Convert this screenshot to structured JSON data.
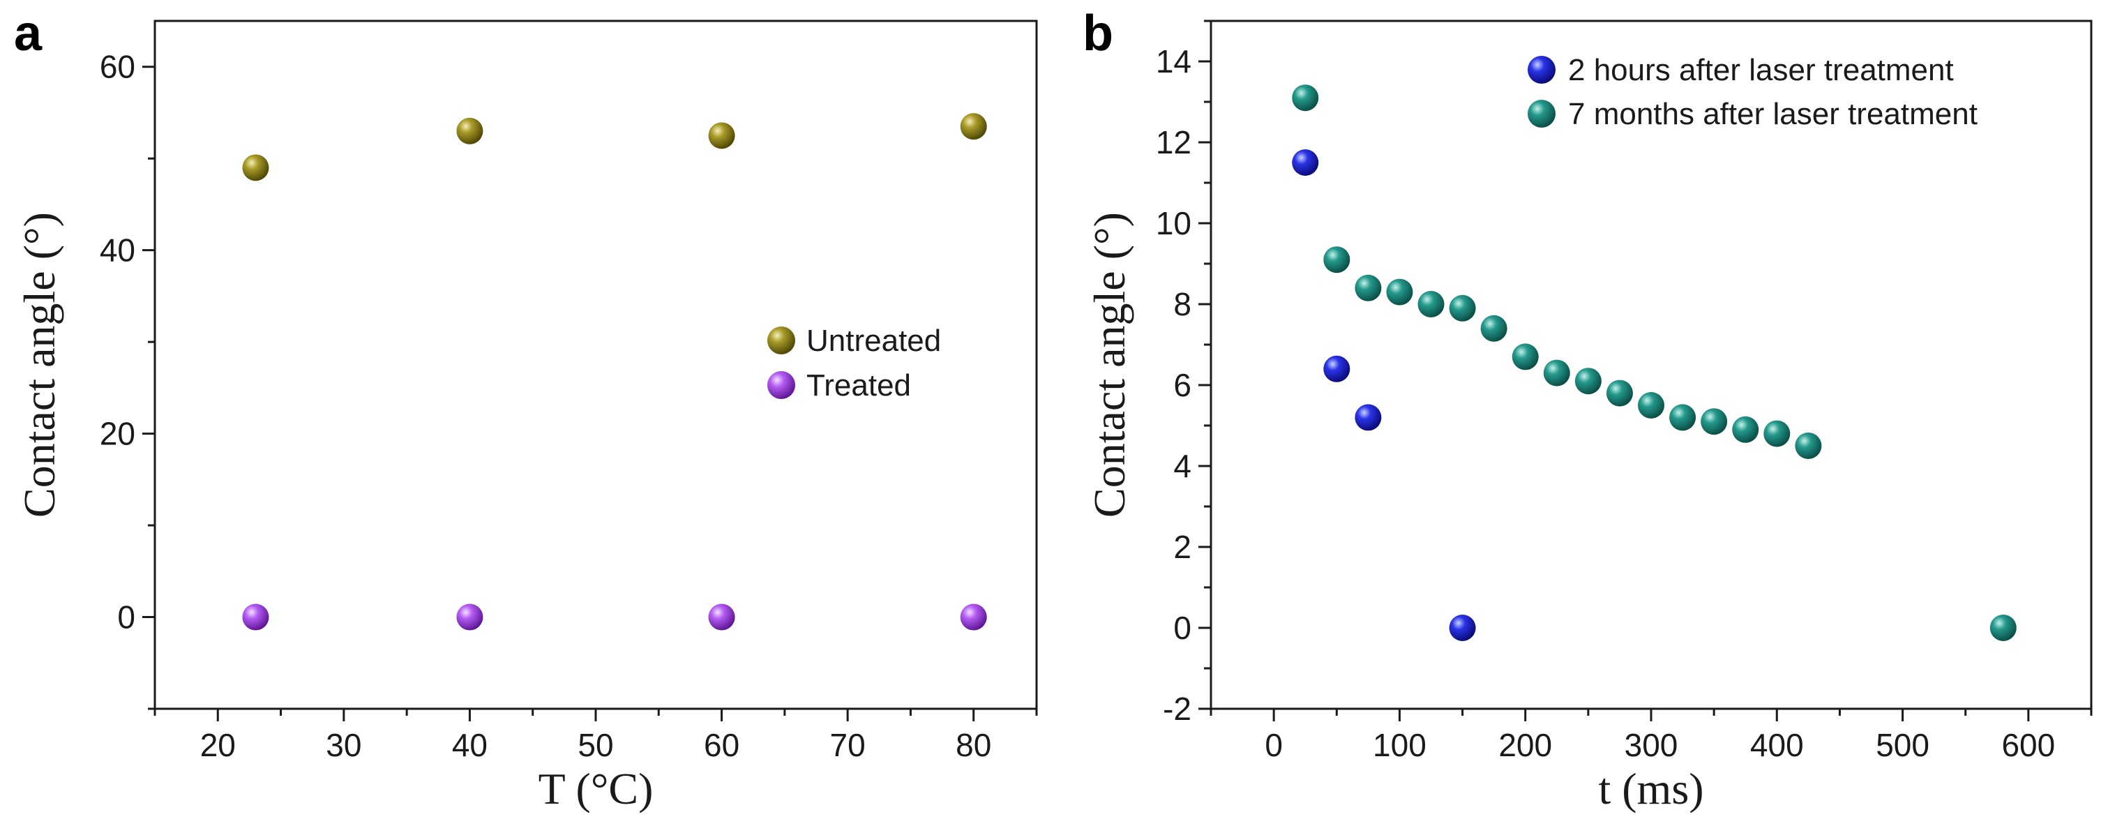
{
  "chart_data": [
    {
      "panel_label": "a",
      "type": "scatter",
      "xlabel": "T (°C)",
      "ylabel": "Contact angle (°)",
      "xlim": [
        15,
        85
      ],
      "ylim": [
        -10,
        65
      ],
      "x_ticks": [
        20,
        30,
        40,
        50,
        60,
        70,
        80
      ],
      "y_ticks": [
        0,
        20,
        40,
        60
      ],
      "legend_position": "center-right",
      "series": [
        {
          "name": "Untreated",
          "color": "#8a7d14",
          "x": [
            23,
            40,
            60,
            80
          ],
          "y": [
            49,
            53,
            52.5,
            53.5
          ]
        },
        {
          "name": "Treated",
          "color": "#a93ce8",
          "x": [
            23,
            40,
            60,
            80
          ],
          "y": [
            0,
            0,
            0,
            0
          ]
        }
      ]
    },
    {
      "panel_label": "b",
      "type": "scatter",
      "xlabel": "t (ms)",
      "ylabel": "Contact angle (°)",
      "xlim": [
        -50,
        650
      ],
      "ylim": [
        -2,
        15
      ],
      "x_ticks": [
        0,
        100,
        200,
        300,
        400,
        500,
        600
      ],
      "y_ticks": [
        -2,
        0,
        2,
        4,
        6,
        8,
        10,
        12,
        14
      ],
      "legend_position": "top-right",
      "series": [
        {
          "name": "2 hours after laser treatment",
          "color": "#1f1fd6",
          "x": [
            25,
            50,
            75,
            150
          ],
          "y": [
            11.5,
            6.4,
            5.2,
            0
          ]
        },
        {
          "name": "7 months after laser treatment",
          "color": "#1e8a80",
          "x": [
            25,
            50,
            75,
            100,
            125,
            150,
            175,
            200,
            225,
            250,
            275,
            300,
            325,
            350,
            375,
            400,
            425,
            580
          ],
          "y": [
            13.1,
            9.1,
            8.4,
            8.3,
            8.0,
            7.9,
            7.4,
            6.7,
            6.3,
            6.1,
            5.8,
            5.5,
            5.2,
            5.1,
            4.9,
            4.8,
            4.5,
            0
          ]
        }
      ]
    }
  ]
}
